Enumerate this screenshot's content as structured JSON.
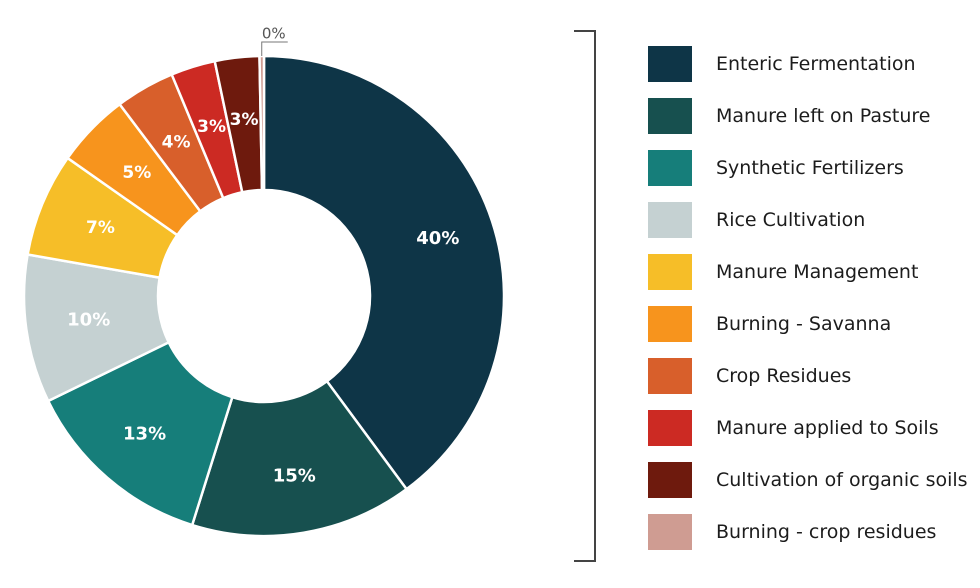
{
  "chart_data": {
    "type": "pie",
    "variant": "donut",
    "title": "",
    "legend_position": "right",
    "slices": [
      {
        "label": "Enteric Fermentation",
        "value": 40,
        "value_label": "40%",
        "color": "#0e3547"
      },
      {
        "label": "Manure left on Pasture",
        "value": 15,
        "value_label": "15%",
        "color": "#17504f"
      },
      {
        "label": "Synthetic Fertilizers",
        "value": 13,
        "value_label": "13%",
        "color": "#167e7a"
      },
      {
        "label": "Rice Cultivation",
        "value": 10,
        "value_label": "10%",
        "color": "#c5d1d2"
      },
      {
        "label": "Manure Management",
        "value": 7,
        "value_label": "7%",
        "color": "#f6be28"
      },
      {
        "label": "Burning - Savanna",
        "value": 5,
        "value_label": "5%",
        "color": "#f7941d"
      },
      {
        "label": "Crop Residues",
        "value": 4,
        "value_label": "4%",
        "color": "#d85f2b"
      },
      {
        "label": "Manure applied to Soils",
        "value": 3,
        "value_label": "3%",
        "color": "#cc2a23"
      },
      {
        "label": "Cultivation of organic soils",
        "value": 3,
        "value_label": "3%",
        "color": "#6e1a0d"
      },
      {
        "label": "Burning - crop residues",
        "value": 0,
        "value_label": "0%",
        "color": "#cf9c92"
      }
    ]
  }
}
